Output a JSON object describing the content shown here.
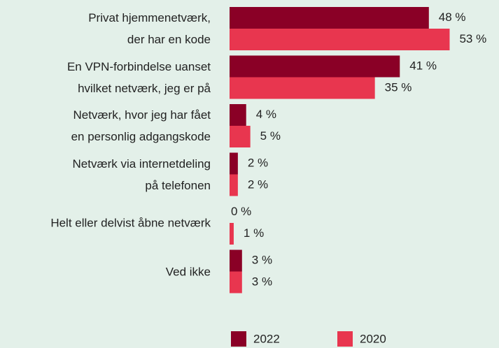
{
  "chart_data": {
    "type": "bar",
    "orientation": "horizontal",
    "categories": [
      "Privat hjemmenetværk,\nder har en kode",
      "En VPN-forbindelse uanset\nhvilket netværk, jeg er på",
      "Netværk, hvor jeg har fået\nen personlig adgangskode",
      "Netværk via internetdeling\npå telefonen",
      "Helt eller delvist åbne netværk",
      "Ved ikke"
    ],
    "series": [
      {
        "name": "2022",
        "color": "#8a0026",
        "values": [
          48,
          41,
          4,
          2,
          0,
          3
        ],
        "value_labels": [
          "48 %",
          "41 %",
          "4 %",
          "2 %",
          "0 %",
          "3 %"
        ]
      },
      {
        "name": "2020",
        "color": "#e8364f",
        "values": [
          53,
          35,
          5,
          2,
          1,
          3
        ],
        "value_labels": [
          "53 %",
          "35 %",
          "5 %",
          "2 %",
          "1 %",
          "3 %"
        ]
      }
    ],
    "xlim": [
      0,
      60
    ]
  }
}
